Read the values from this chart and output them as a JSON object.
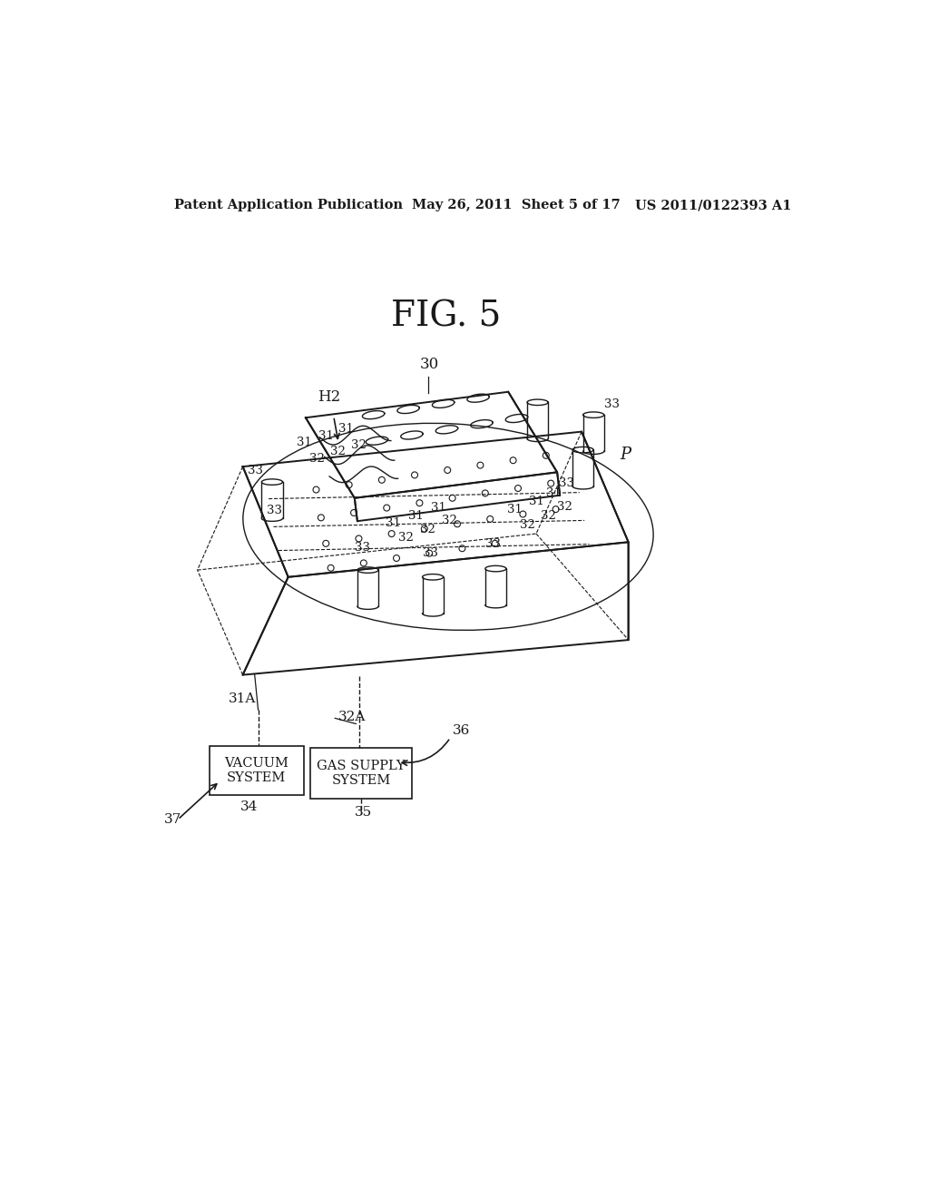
{
  "title": "FIG. 5",
  "header_left": "Patent Application Publication",
  "header_center": "May 26, 2011  Sheet 5 of 17",
  "header_right": "US 2011/0122393 A1",
  "background_color": "#ffffff",
  "line_color": "#1a1a1a"
}
